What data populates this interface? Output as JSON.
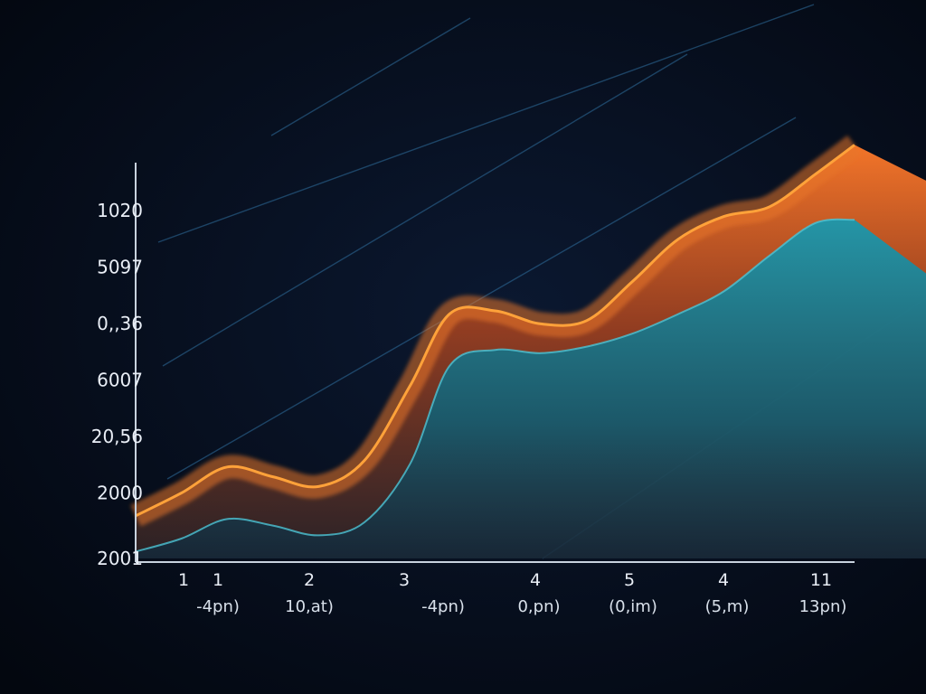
{
  "chart_data": {
    "type": "area",
    "y_tick_labels": [
      "1020",
      "5097",
      "0,,36",
      "6007",
      "20,56",
      "2000",
      "2001"
    ],
    "x_tick_labels": [
      "1",
      "1",
      "2",
      "3",
      "4",
      "5",
      "4",
      "11"
    ],
    "x_sub_labels": [
      "-4pn)",
      "10,at)",
      "-4pn)",
      "0,pn)",
      "(0,im)",
      "(5,m)",
      "13pn)"
    ],
    "ylim": [
      0,
      6
    ],
    "xlim": [
      0,
      11
    ],
    "grid": false,
    "x": [
      0,
      0.7,
      1.4,
      2.1,
      2.8,
      3.5,
      4.2,
      4.8,
      5.5,
      6.2,
      6.9,
      7.6,
      8.3,
      9.0,
      9.7,
      10.4,
      11.0
    ],
    "series": [
      {
        "values": [
          0.6,
          0.95,
          1.35,
          1.2,
          1.05,
          1.45,
          2.6,
          3.7,
          3.75,
          3.55,
          3.6,
          4.2,
          4.85,
          5.2,
          5.35,
          5.85,
          6.3
        ],
        "color": "#e8742a"
      },
      {
        "values": [
          0.05,
          0.25,
          0.55,
          0.45,
          0.3,
          0.5,
          1.4,
          2.9,
          3.15,
          3.1,
          3.2,
          3.4,
          3.7,
          4.05,
          4.6,
          5.1,
          5.15
        ],
        "color": "#1a8fa4"
      }
    ],
    "colors": {
      "background": "#050b1a",
      "axis": "#c8d2de",
      "orange": "#e8742a",
      "teal": "#1a8fa4"
    }
  }
}
